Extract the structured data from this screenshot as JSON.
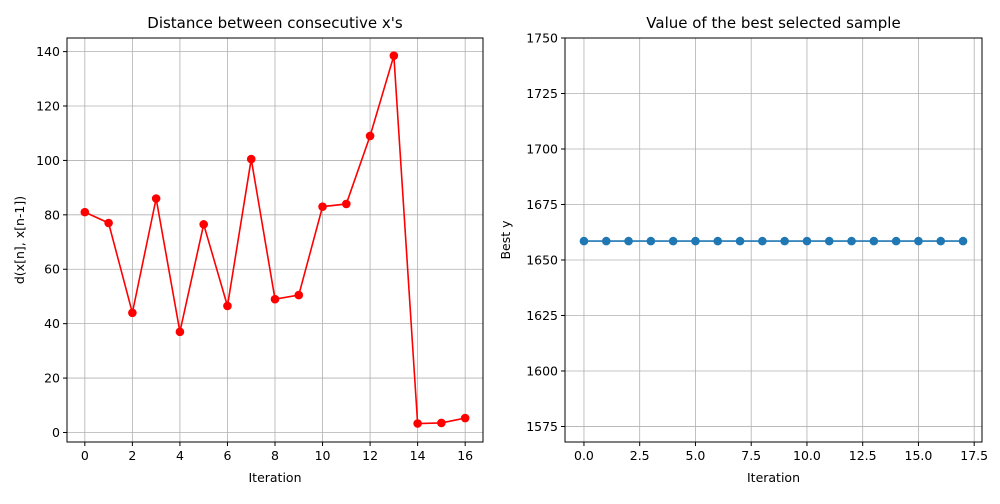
{
  "chart_data": [
    {
      "type": "line",
      "title": "Distance between consecutive x's",
      "xlabel": "Iteration",
      "ylabel": "d(x[n], x[n-1])",
      "xlim": [
        -0.75,
        16.75
      ],
      "ylim": [
        -3.5,
        145
      ],
      "xticks": [
        0,
        2,
        4,
        6,
        8,
        10,
        12,
        14,
        16
      ],
      "xtick_labels": [
        "0",
        "2",
        "4",
        "6",
        "8",
        "10",
        "12",
        "14",
        "16"
      ],
      "yticks": [
        0,
        20,
        40,
        60,
        80,
        100,
        120,
        140
      ],
      "ytick_labels": [
        "0",
        "20",
        "40",
        "60",
        "80",
        "100",
        "120",
        "140"
      ],
      "grid": true,
      "series": [
        {
          "color": "#ff0000",
          "marker": "circle",
          "x": [
            0,
            1,
            2,
            3,
            4,
            5,
            6,
            7,
            8,
            9,
            10,
            11,
            12,
            13,
            14,
            15,
            16
          ],
          "y": [
            81,
            77,
            44,
            86,
            37,
            76.5,
            46.5,
            100.5,
            49,
            50.5,
            83,
            84,
            109,
            138.5,
            3.3,
            3.5,
            5.3
          ]
        }
      ]
    },
    {
      "type": "line",
      "title": "Value of the best selected sample",
      "xlabel": "Iteration",
      "ylabel": "Best y",
      "xlim": [
        -0.85,
        17.85
      ],
      "ylim": [
        1568,
        1750
      ],
      "xticks": [
        0,
        2.5,
        5,
        7.5,
        10,
        12.5,
        15,
        17.5
      ],
      "xtick_labels": [
        "0.0",
        "2.5",
        "5.0",
        "7.5",
        "10.0",
        "12.5",
        "15.0",
        "17.5"
      ],
      "yticks": [
        1575,
        1600,
        1625,
        1650,
        1675,
        1700,
        1725,
        1750
      ],
      "ytick_labels": [
        "1575",
        "1600",
        "1625",
        "1650",
        "1675",
        "1700",
        "1725",
        "1750"
      ],
      "grid": true,
      "series": [
        {
          "color": "#1f77b4",
          "marker": "circle",
          "x": [
            0,
            1,
            2,
            3,
            4,
            5,
            6,
            7,
            8,
            9,
            10,
            11,
            12,
            13,
            14,
            15,
            16,
            17
          ],
          "y": [
            1658.5,
            1658.5,
            1658.5,
            1658.5,
            1658.5,
            1658.5,
            1658.5,
            1658.5,
            1658.5,
            1658.5,
            1658.5,
            1658.5,
            1658.5,
            1658.5,
            1658.5,
            1658.5,
            1658.5,
            1658.5
          ]
        }
      ]
    }
  ]
}
